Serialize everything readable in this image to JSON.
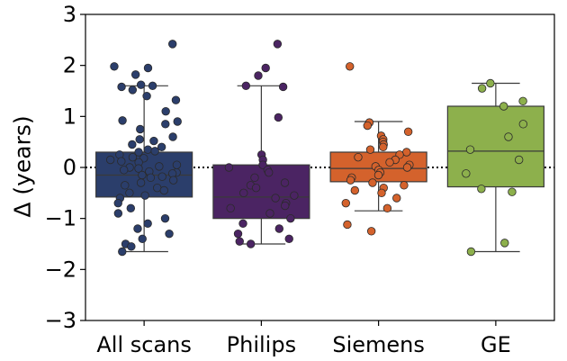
{
  "chart_data": {
    "type": "box",
    "title": "",
    "xlabel": "",
    "ylabel": "Δ (years)",
    "ylim": [
      -3,
      3
    ],
    "yticks": [
      -3,
      -2,
      -1,
      0,
      1,
      2,
      3
    ],
    "ytick_labels": [
      "−3",
      "−2",
      "−1",
      "0",
      "1",
      "2",
      "3"
    ],
    "reference_line": {
      "y": 0,
      "style": "dotted"
    },
    "grid": false,
    "legend": "none",
    "categories": [
      "All scans",
      "Philips",
      "Siemens",
      "GE"
    ],
    "series": [
      {
        "color": "#2b3e6b",
        "box": {
          "whisker_low": -1.65,
          "q1": -0.58,
          "median": -0.15,
          "q3": 0.3,
          "whisker_high": 1.6
        },
        "points": [
          2.42,
          1.98,
          1.95,
          1.82,
          1.62,
          1.6,
          1.58,
          1.52,
          1.4,
          1.32,
          1.1,
          0.92,
          0.9,
          0.85,
          0.75,
          0.6,
          0.55,
          0.52,
          0.45,
          0.4,
          0.35,
          0.32,
          0.3,
          0.25,
          0.2,
          0.18,
          0.15,
          0.12,
          0.1,
          0.05,
          0.02,
          0.0,
          -0.02,
          -0.05,
          -0.08,
          -0.1,
          -0.12,
          -0.15,
          -0.18,
          -0.2,
          -0.25,
          -0.3,
          -0.35,
          -0.4,
          -0.45,
          -0.5,
          -0.55,
          -0.6,
          -0.7,
          -0.8,
          -0.9,
          -1.0,
          -1.1,
          -1.2,
          -1.3,
          -1.4,
          -1.5,
          -1.55,
          -1.65
        ]
      },
      {
        "color": "#4b2463",
        "box": {
          "whisker_low": -1.5,
          "q1": -1.0,
          "median": -0.58,
          "q3": 0.05,
          "whisker_high": 1.6
        },
        "points": [
          2.42,
          1.95,
          1.8,
          1.6,
          1.58,
          0.98,
          0.25,
          0.15,
          0.05,
          0.0,
          -0.05,
          -0.1,
          -0.2,
          -0.3,
          -0.35,
          -0.4,
          -0.5,
          -0.55,
          -0.6,
          -0.7,
          -0.75,
          -0.8,
          -0.9,
          -1.0,
          -1.1,
          -1.2,
          -1.3,
          -1.4,
          -1.45,
          -1.5
        ]
      },
      {
        "color": "#d4622c",
        "box": {
          "whisker_low": -0.85,
          "q1": -0.28,
          "median": -0.02,
          "q3": 0.3,
          "whisker_high": 0.9
        },
        "points": [
          1.98,
          0.88,
          0.82,
          0.7,
          0.62,
          0.55,
          0.5,
          0.45,
          0.4,
          0.35,
          0.3,
          0.25,
          0.2,
          0.15,
          0.1,
          0.05,
          0.02,
          0.0,
          -0.05,
          -0.1,
          -0.15,
          -0.2,
          -0.25,
          -0.3,
          -0.35,
          -0.4,
          -0.45,
          -0.5,
          -0.6,
          -0.7,
          -0.8,
          -1.12,
          -1.25
        ]
      },
      {
        "color": "#8db04c",
        "box": {
          "whisker_low": -1.65,
          "q1": -0.38,
          "median": 0.32,
          "q3": 1.2,
          "whisker_high": 1.65
        },
        "points": [
          1.65,
          1.55,
          1.3,
          1.2,
          0.85,
          0.6,
          0.35,
          0.15,
          -0.12,
          -0.42,
          -0.48,
          -1.48,
          -1.65
        ]
      }
    ]
  }
}
